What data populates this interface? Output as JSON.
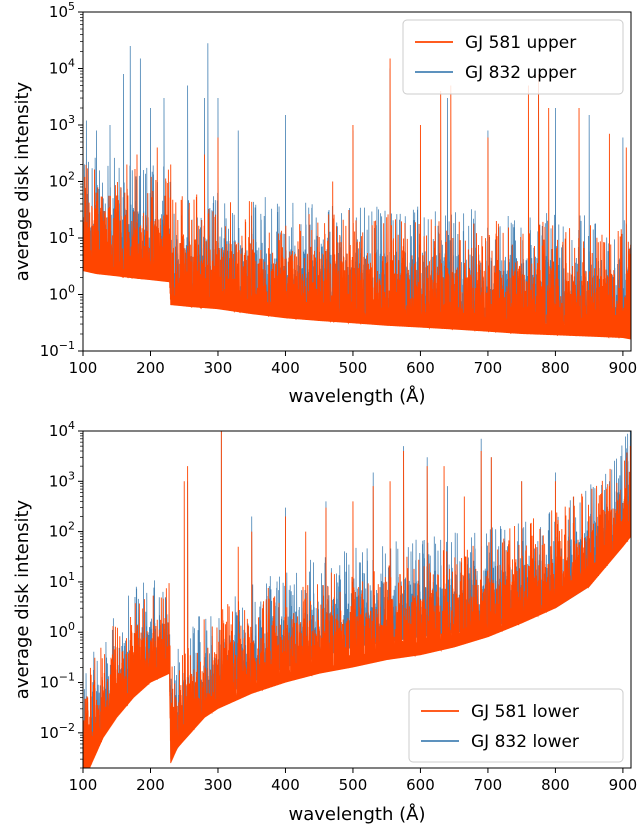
{
  "chart_data": [
    {
      "type": "line",
      "xlabel": "wavelength (Å)",
      "ylabel": "average disk intensity",
      "xlim": [
        100,
        912
      ],
      "ylim": [
        0.1,
        100000
      ],
      "yscale": "log",
      "xticks": [
        100,
        200,
        300,
        400,
        500,
        600,
        700,
        800,
        900
      ],
      "yticks": [
        {
          "base": "10",
          "exp": "−1",
          "value": 0.1
        },
        {
          "base": "10",
          "exp": "0",
          "value": 1
        },
        {
          "base": "10",
          "exp": "1",
          "value": 10
        },
        {
          "base": "10",
          "exp": "2",
          "value": 100
        },
        {
          "base": "10",
          "exp": "3",
          "value": 1000
        },
        {
          "base": "10",
          "exp": "4",
          "value": 10000
        },
        {
          "base": "10",
          "exp": "5",
          "value": 100000
        }
      ],
      "legend_position": "top-right",
      "series": [
        {
          "name": "GJ 581 upper",
          "color": "#ff4500",
          "x": [
            100,
            120,
            150,
            180,
            200,
            228,
            230,
            260,
            300,
            350,
            400,
            450,
            500,
            550,
            600,
            650,
            700,
            750,
            800,
            850,
            900,
            912
          ],
          "y": [
            2.6,
            2.3,
            2.1,
            1.9,
            1.8,
            1.65,
            0.65,
            0.6,
            0.55,
            0.45,
            0.38,
            0.34,
            0.31,
            0.28,
            0.26,
            0.24,
            0.22,
            0.2,
            0.19,
            0.18,
            0.17,
            0.16
          ],
          "peaks": [
            [
              165,
              200
            ],
            [
              180,
              300
            ],
            [
              210,
              400
            ],
            [
              230,
              200
            ],
            [
              280,
              300
            ],
            [
              300,
              600
            ],
            [
              470,
              100
            ],
            [
              500,
              1000
            ],
            [
              555,
              15000
            ],
            [
              600,
              1000
            ],
            [
              630,
              4000
            ],
            [
              645,
              5000
            ],
            [
              700,
              600
            ],
            [
              760,
              5000
            ],
            [
              775,
              8000
            ],
            [
              790,
              2000
            ],
            [
              835,
              2000
            ],
            [
              880,
              700
            ],
            [
              905,
              400
            ]
          ]
        },
        {
          "name": "GJ 832 upper",
          "color": "#4682b4",
          "x": [
            100,
            150,
            200,
            228,
            230,
            300,
            400,
            500,
            600,
            700,
            800,
            900,
            912
          ],
          "y": [
            3.2,
            2.6,
            2.2,
            2,
            0.8,
            0.7,
            0.5,
            0.42,
            0.38,
            0.34,
            0.3,
            0.28,
            0.27
          ],
          "peaks": [
            [
              105,
              1200
            ],
            [
              120,
              800
            ],
            [
              140,
              1000
            ],
            [
              160,
              8000
            ],
            [
              170,
              25000
            ],
            [
              185,
              15000
            ],
            [
              200,
              2000
            ],
            [
              220,
              3000
            ],
            [
              255,
              5000
            ],
            [
              280,
              3000
            ],
            [
              285,
              28000
            ],
            [
              300,
              3000
            ],
            [
              330,
              800
            ],
            [
              400,
              1500
            ],
            [
              500,
              800
            ],
            [
              555,
              10000
            ],
            [
              640,
              3000
            ],
            [
              700,
              800
            ],
            [
              775,
              5000
            ],
            [
              800,
              2000
            ],
            [
              850,
              1500
            ],
            [
              900,
              600
            ]
          ]
        }
      ]
    },
    {
      "type": "line",
      "xlabel": "wavelength (Å)",
      "ylabel": "average disk intensity",
      "xlim": [
        100,
        912
      ],
      "ylim": [
        0.002,
        10000
      ],
      "yscale": "log",
      "xticks": [
        100,
        200,
        300,
        400,
        500,
        600,
        700,
        800,
        900
      ],
      "yticks": [
        {
          "base": "10",
          "exp": "−2",
          "value": 0.01
        },
        {
          "base": "10",
          "exp": "−1",
          "value": 0.1
        },
        {
          "base": "10",
          "exp": "0",
          "value": 1
        },
        {
          "base": "10",
          "exp": "1",
          "value": 10
        },
        {
          "base": "10",
          "exp": "2",
          "value": 100
        },
        {
          "base": "10",
          "exp": "3",
          "value": 1000
        },
        {
          "base": "10",
          "exp": "4",
          "value": 10000
        }
      ],
      "legend_position": "bottom-right",
      "series": [
        {
          "name": "GJ 581 lower",
          "color": "#ff4500",
          "x": [
            110,
            130,
            150,
            175,
            200,
            228,
            230,
            240,
            260,
            280,
            300,
            350,
            400,
            450,
            500,
            550,
            600,
            650,
            700,
            750,
            800,
            850,
            900,
            912
          ],
          "y": [
            0.002,
            0.008,
            0.02,
            0.05,
            0.1,
            0.15,
            0.0025,
            0.005,
            0.01,
            0.02,
            0.03,
            0.06,
            0.1,
            0.15,
            0.2,
            0.28,
            0.35,
            0.5,
            0.8,
            1.5,
            3,
            8,
            50,
            80
          ],
          "peaks": [
            [
              120,
              0.01
            ],
            [
              160,
              0.3
            ],
            [
              175,
              0.4
            ],
            [
              200,
              0.6
            ],
            [
              250,
              1000
            ],
            [
              255,
              2000
            ],
            [
              305,
              10000
            ],
            [
              330,
              50
            ],
            [
              350,
              100
            ],
            [
              400,
              200
            ],
            [
              430,
              100
            ],
            [
              460,
              300
            ],
            [
              500,
              400
            ],
            [
              530,
              800
            ],
            [
              555,
              1000
            ],
            [
              575,
              4000
            ],
            [
              610,
              2000
            ],
            [
              635,
              2000
            ],
            [
              665,
              500
            ],
            [
              690,
              4000
            ],
            [
              705,
              3000
            ],
            [
              750,
              1000
            ],
            [
              800,
              1000
            ],
            [
              840,
              500
            ],
            [
              880,
              800
            ],
            [
              900,
              300
            ]
          ]
        },
        {
          "name": "GJ 832 lower",
          "color": "#4682b4",
          "x": [
            110,
            130,
            150,
            175,
            200,
            228,
            230,
            250,
            270,
            300,
            350,
            400,
            500,
            600,
            700,
            800,
            850,
            900,
            912
          ],
          "y": [
            0.003,
            0.01,
            0.03,
            0.08,
            0.13,
            0.18,
            0.003,
            0.008,
            0.02,
            0.05,
            0.1,
            0.2,
            0.5,
            0.8,
            1.2,
            3,
            8,
            60,
            140
          ],
          "peaks": [
            [
              120,
              0.025
            ],
            [
              230,
              0.05
            ],
            [
              255,
              1000
            ],
            [
              305,
              11000
            ],
            [
              350,
              200
            ],
            [
              400,
              300
            ],
            [
              460,
              400
            ],
            [
              530,
              1500
            ],
            [
              575,
              5000
            ],
            [
              610,
              3000
            ],
            [
              640,
              800
            ],
            [
              690,
              7000
            ],
            [
              705,
              3000
            ],
            [
              750,
              1000
            ],
            [
              800,
              1500
            ],
            [
              880,
              1000
            ]
          ]
        }
      ]
    }
  ]
}
